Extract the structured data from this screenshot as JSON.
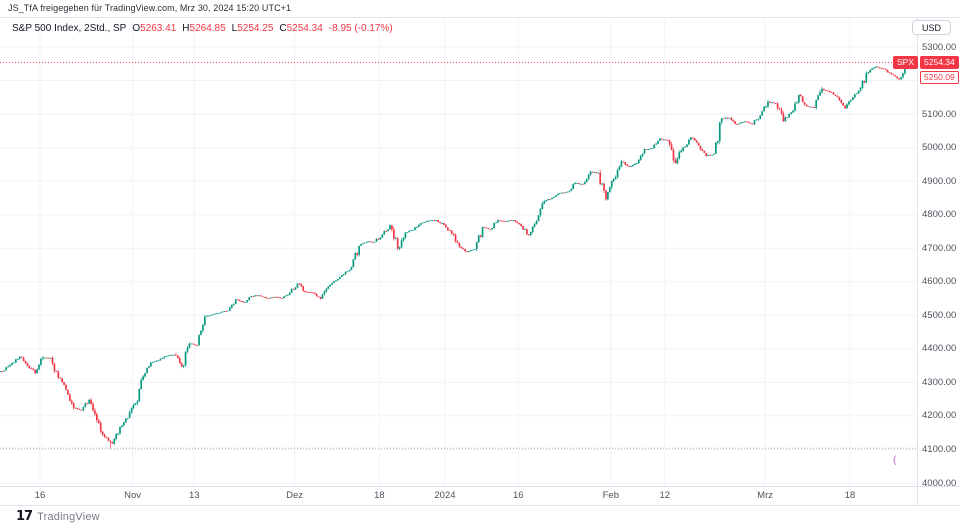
{
  "attribution": "JS_TfA freigegeben für TradingView.com, Mrz 30, 2024 15:20 UTC+1",
  "legend": {
    "title": "S&P 500 Index, 2Std., SP",
    "fields": [
      {
        "label": "O",
        "value": "5263.41"
      },
      {
        "label": "H",
        "value": "5264.85"
      },
      {
        "label": "L",
        "value": "5254.25"
      },
      {
        "label": "C",
        "value": "5254.34"
      }
    ],
    "change": "-8.95 (-0.17%)"
  },
  "price_axis": {
    "currency_button": "USD"
  },
  "price_badge": {
    "symbol": "SPX",
    "price": "5254.34",
    "counter": "5250.09"
  },
  "purple_partial_label": "(",
  "footer": {
    "logo_glyph": "17",
    "logo_text": "TradingView"
  },
  "colors": {
    "up": "#089981",
    "down": "#f23645",
    "accent_red": "#f23645",
    "grid": "#f0f3fa",
    "axis_text": "#50535e",
    "border": "#e0e3eb",
    "low_line": "#a6aab5",
    "price_line": "#f23645"
  },
  "chart_data": {
    "type": "candlestick",
    "title": "S&P 500 Index, 2Std., SP",
    "symbol": "SPX",
    "timeframe": "2Std.",
    "currency": "USD",
    "ylim": [
      4000,
      5300
    ],
    "y_ticks": [
      5300,
      5200,
      5100,
      5000,
      4900,
      4800,
      4700,
      4600,
      4500,
      4400,
      4300,
      4200,
      4100,
      4000
    ],
    "x_ticks": [
      {
        "label": "16",
        "day": 5
      },
      {
        "label": "Nov",
        "day": 17
      },
      {
        "label": "13",
        "day": 25
      },
      {
        "label": "Dez",
        "day": 38
      },
      {
        "label": "18",
        "day": 49
      },
      {
        "label": "2024",
        "day": 57.5
      },
      {
        "label": "16",
        "day": 67
      },
      {
        "label": "Feb",
        "day": 79
      },
      {
        "label": "12",
        "day": 86
      },
      {
        "label": "Mrz",
        "day": 99
      },
      {
        "label": "18",
        "day": 110
      }
    ],
    "grid": true,
    "price_line": 5254.34,
    "low_dotted_line": 4103.78,
    "last_candle": {
      "o": 5263.41,
      "h": 5264.85,
      "l": 5254.25,
      "c": 5254.34
    },
    "daily_closes_note": "2h candles are synthesized from these real daily closes depicted in the chart",
    "days": [
      [
        "Okt 9",
        4335.66
      ],
      [
        "Okt 10",
        4358.24
      ],
      [
        "Okt 11",
        4376.95
      ],
      [
        "Okt 12",
        4349.61
      ],
      [
        "Okt 13",
        4327.78
      ],
      [
        "Okt 16",
        4373.63
      ],
      [
        "Okt 17",
        4373.2
      ],
      [
        "Okt 18",
        4314.6
      ],
      [
        "Okt 19",
        4278.0
      ],
      [
        "Okt 20",
        4224.16
      ],
      [
        "Okt 23",
        4217.04
      ],
      [
        "Okt 24",
        4247.68
      ],
      [
        "Okt 25",
        4186.77
      ],
      [
        "Okt 26",
        4137.23
      ],
      [
        "Okt 27",
        4117.37,
        4103.78
      ],
      [
        "Okt 30",
        4166.82
      ],
      [
        "Okt 31",
        4193.8
      ],
      [
        "Nov 1",
        4237.86
      ],
      [
        "Nov 2",
        4317.78
      ],
      [
        "Nov 3",
        4358.34
      ],
      [
        "Nov 6",
        4365.98
      ],
      [
        "Nov 7",
        4378.38
      ],
      [
        "Nov 8",
        4382.78
      ],
      [
        "Nov 9",
        4347.35
      ],
      [
        "Nov 10",
        4415.24
      ],
      [
        "Nov 13",
        4411.55
      ],
      [
        "Nov 14",
        4495.7
      ],
      [
        "Nov 15",
        4502.88
      ],
      [
        "Nov 16",
        4508.24
      ],
      [
        "Nov 17",
        4514.02
      ],
      [
        "Nov 20",
        4547.38
      ],
      [
        "Nov 21",
        4538.19
      ],
      [
        "Nov 22",
        4556.62
      ],
      [
        "Nov 24",
        4559.34
      ],
      [
        "Nov 27",
        4550.43
      ],
      [
        "Nov 28",
        4554.89
      ],
      [
        "Nov 29",
        4550.58
      ],
      [
        "Nov 30",
        4567.8
      ],
      [
        "Dez 1",
        4594.63
      ],
      [
        "Dez 4",
        4569.78
      ],
      [
        "Dez 5",
        4567.18
      ],
      [
        "Dez 6",
        4549.34
      ],
      [
        "Dez 7",
        4585.59
      ],
      [
        "Dez 8",
        4604.37
      ],
      [
        "Dez 11",
        4622.44
      ],
      [
        "Dez 12",
        4643.7
      ],
      [
        "Dez 13",
        4707.09
      ],
      [
        "Dez 14",
        4719.55
      ],
      [
        "Dez 15",
        4719.19
      ],
      [
        "Dez 18",
        4740.56
      ],
      [
        "Dez 19",
        4768.37
      ],
      [
        "Dez 20",
        4698.35
      ],
      [
        "Dez 21",
        4746.75
      ],
      [
        "Dez 22",
        4754.63
      ],
      [
        "Dez 26",
        4774.75
      ],
      [
        "Dez 27",
        4781.58
      ],
      [
        "Dez 28",
        4783.35
      ],
      [
        "Dez 29",
        4769.83
      ],
      [
        "Jan 2",
        4742.83
      ],
      [
        "Jan 3",
        4704.81
      ],
      [
        "Jan 4",
        4688.68
      ],
      [
        "Jan 5",
        4697.24
      ],
      [
        "Jan 8",
        4763.54
      ],
      [
        "Jan 9",
        4756.5
      ],
      [
        "Jan 10",
        4783.45
      ],
      [
        "Jan 11",
        4780.24
      ],
      [
        "Jan 12",
        4783.83
      ],
      [
        "Jan 16",
        4765.98
      ],
      [
        "Jan 17",
        4739.21
      ],
      [
        "Jan 18",
        4780.94
      ],
      [
        "Jan 19",
        4839.81
      ],
      [
        "Jan 22",
        4850.43
      ],
      [
        "Jan 23",
        4864.6
      ],
      [
        "Jan 24",
        4868.55
      ],
      [
        "Jan 25",
        4894.16
      ],
      [
        "Jan 26",
        4890.97
      ],
      [
        "Jan 29",
        4927.93
      ],
      [
        "Jan 30",
        4924.97
      ],
      [
        "Jan 31",
        4845.65
      ],
      [
        "Feb 1",
        4906.19
      ],
      [
        "Feb 2",
        4958.61
      ],
      [
        "Feb 5",
        4942.81
      ],
      [
        "Feb 6",
        4954.23
      ],
      [
        "Feb 7",
        4995.06
      ],
      [
        "Feb 8",
        4997.91
      ],
      [
        "Feb 9",
        5026.61
      ],
      [
        "Feb 12",
        5021.84
      ],
      [
        "Feb 13",
        4953.17
      ],
      [
        "Feb 14",
        5000.62
      ],
      [
        "Feb 15",
        5029.73
      ],
      [
        "Feb 16",
        5005.57
      ],
      [
        "Feb 20",
        4975.51
      ],
      [
        "Feb 21",
        4981.8
      ],
      [
        "Feb 22",
        5087.03
      ],
      [
        "Feb 23",
        5088.8
      ],
      [
        "Feb 26",
        5069.53
      ],
      [
        "Feb 27",
        5078.18
      ],
      [
        "Feb 28",
        5069.76
      ],
      [
        "Feb 29",
        5096.27
      ],
      [
        "Mrz 1",
        5137.08
      ],
      [
        "Mrz 4",
        5130.95
      ],
      [
        "Mrz 5",
        5078.65
      ],
      [
        "Mrz 6",
        5104.76
      ],
      [
        "Mrz 7",
        5157.36
      ],
      [
        "Mrz 8",
        5123.69
      ],
      [
        "Mrz 11",
        5117.94
      ],
      [
        "Mrz 12",
        5175.27
      ],
      [
        "Mrz 13",
        5165.31
      ],
      [
        "Mrz 14",
        5150.48
      ],
      [
        "Mrz 15",
        5117.09
      ],
      [
        "Mrz 18",
        5149.42
      ],
      [
        "Mrz 19",
        5178.51
      ],
      [
        "Mrz 20",
        5224.62
      ],
      [
        "Mrz 21",
        5241.53
      ],
      [
        "Mrz 22",
        5234.18
      ],
      [
        "Mrz 25",
        5218.19
      ],
      [
        "Mrz 26",
        5203.58
      ],
      [
        "Mrz 27",
        5248.49
      ],
      [
        "Mrz 28",
        5254.34
      ]
    ]
  }
}
